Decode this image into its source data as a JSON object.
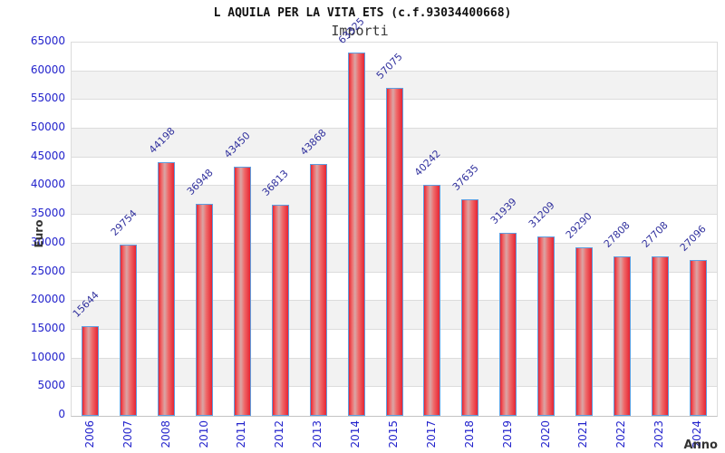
{
  "chart_data": {
    "type": "bar",
    "title": "L AQUILA PER LA VITA ETS (c.f.93034400668)",
    "subtitle": "Importi",
    "xlabel": "Anno",
    "ylabel": "Euro",
    "categories": [
      "2006",
      "2007",
      "2008",
      "2010",
      "2011",
      "2012",
      "2013",
      "2014",
      "2015",
      "2017",
      "2018",
      "2019",
      "2020",
      "2021",
      "2022",
      "2023",
      "2024"
    ],
    "values": [
      15644,
      29754,
      44198,
      36948,
      43450,
      36813,
      43868,
      63325,
      57075,
      40242,
      37635,
      31939,
      31209,
      29290,
      27808,
      27708,
      27096
    ],
    "ylim": [
      0,
      65000
    ],
    "ytick_step": 5000,
    "yticks": [
      0,
      5000,
      10000,
      15000,
      20000,
      25000,
      30000,
      35000,
      40000,
      45000,
      50000,
      55000,
      60000,
      65000
    ],
    "grid": "horizontal-bands",
    "legend": "none",
    "colors": {
      "bar_edge": "#e62533",
      "bar_light": "#ef6b6b",
      "bar_mid": "#d9a6a6",
      "bar_border": "#5e9ee0",
      "tick_label": "#2323cc",
      "value_label": "#32329e",
      "band_gray": "#f2f2f2",
      "gridline": "#dcdcdc",
      "axis_title": "#333333"
    }
  }
}
